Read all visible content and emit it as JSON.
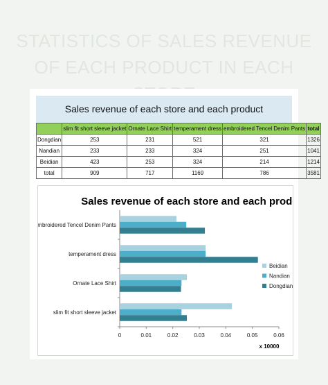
{
  "page": {
    "heading_line1": "STATISTICS OF SALES REVENUE",
    "heading_line2": "OF EACH PRODUCT IN EACH STORE"
  },
  "table": {
    "title": "Sales revenue of each store and each product",
    "columns": [
      "",
      "slim fit short sleeve jacket",
      "Ornate Lace Shirt",
      "temperament dress",
      "embroidered Tencel Denim Pants",
      "total"
    ],
    "rows": [
      [
        "Dongdian",
        "253",
        "231",
        "521",
        "321",
        "1326"
      ],
      [
        "Nandian",
        "233",
        "233",
        "324",
        "251",
        "1041"
      ],
      [
        "Beidian",
        "423",
        "253",
        "324",
        "214",
        "1214"
      ],
      [
        "total",
        "909",
        "717",
        "1169",
        "786",
        "3581"
      ]
    ]
  },
  "chart_data": {
    "type": "bar",
    "orientation": "horizontal",
    "title": "Sales revenue of each store and each product",
    "categories": [
      "slim fit short sleeve jacket",
      "Ornate Lace Shirt",
      "temperament dress",
      "Embroidered Tencel Denim Pants"
    ],
    "series": [
      {
        "name": "Beidian",
        "values": [
          0.0423,
          0.0253,
          0.0324,
          0.0214
        ],
        "color": "#a8d2e0"
      },
      {
        "name": "Nandian",
        "values": [
          0.0233,
          0.0233,
          0.0324,
          0.0251
        ],
        "color": "#4daec9"
      },
      {
        "name": "Dongdian",
        "values": [
          0.0253,
          0.0231,
          0.0521,
          0.0321
        ],
        "color": "#317f91"
      }
    ],
    "xlim": [
      0,
      0.06
    ],
    "xticks": [
      "0",
      "0.01",
      "0.02",
      "0.03",
      "0.04",
      "0.05",
      "0.06"
    ],
    "x_multiplier_label": "x 10000",
    "legend_position": "right",
    "grid": false
  }
}
